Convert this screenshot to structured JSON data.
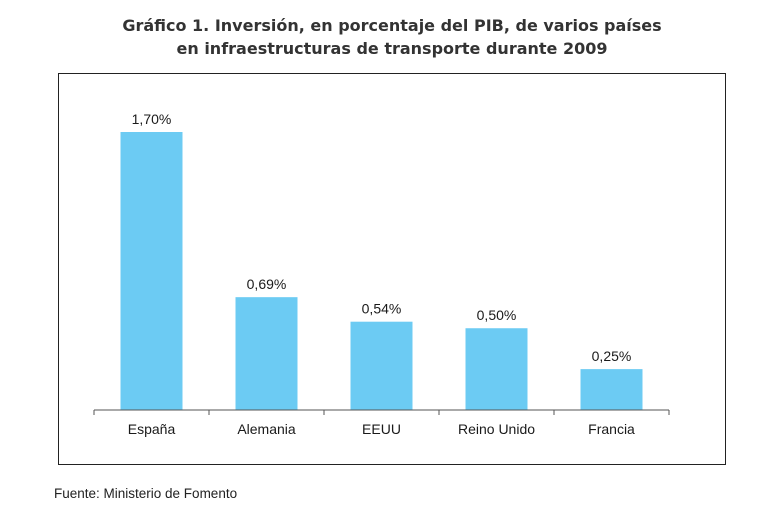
{
  "title_line1": "Gráfico 1. Inversión, en porcentaje del PIB, de varios países",
  "title_line2": "en infraestructuras de transporte durante 2009",
  "source": "Fuente: Ministerio de Fomento",
  "colors": {
    "bar": "#6ccbf3",
    "axis": "#555555"
  },
  "chart_data": {
    "type": "bar",
    "title": "Gráfico 1. Inversión, en porcentaje del PIB, de varios países en infraestructuras de transporte durante 2009",
    "categories": [
      "España",
      "Alemania",
      "EEUU",
      "Reino Unido",
      "Francia"
    ],
    "values": [
      1.7,
      0.69,
      0.54,
      0.5,
      0.25
    ],
    "value_labels": [
      "1,70%",
      "0,69%",
      "0,54%",
      "0,50%",
      "0,25%"
    ],
    "unit": "%",
    "ylim": [
      0,
      1.7
    ],
    "grid": false,
    "legend": "none"
  }
}
